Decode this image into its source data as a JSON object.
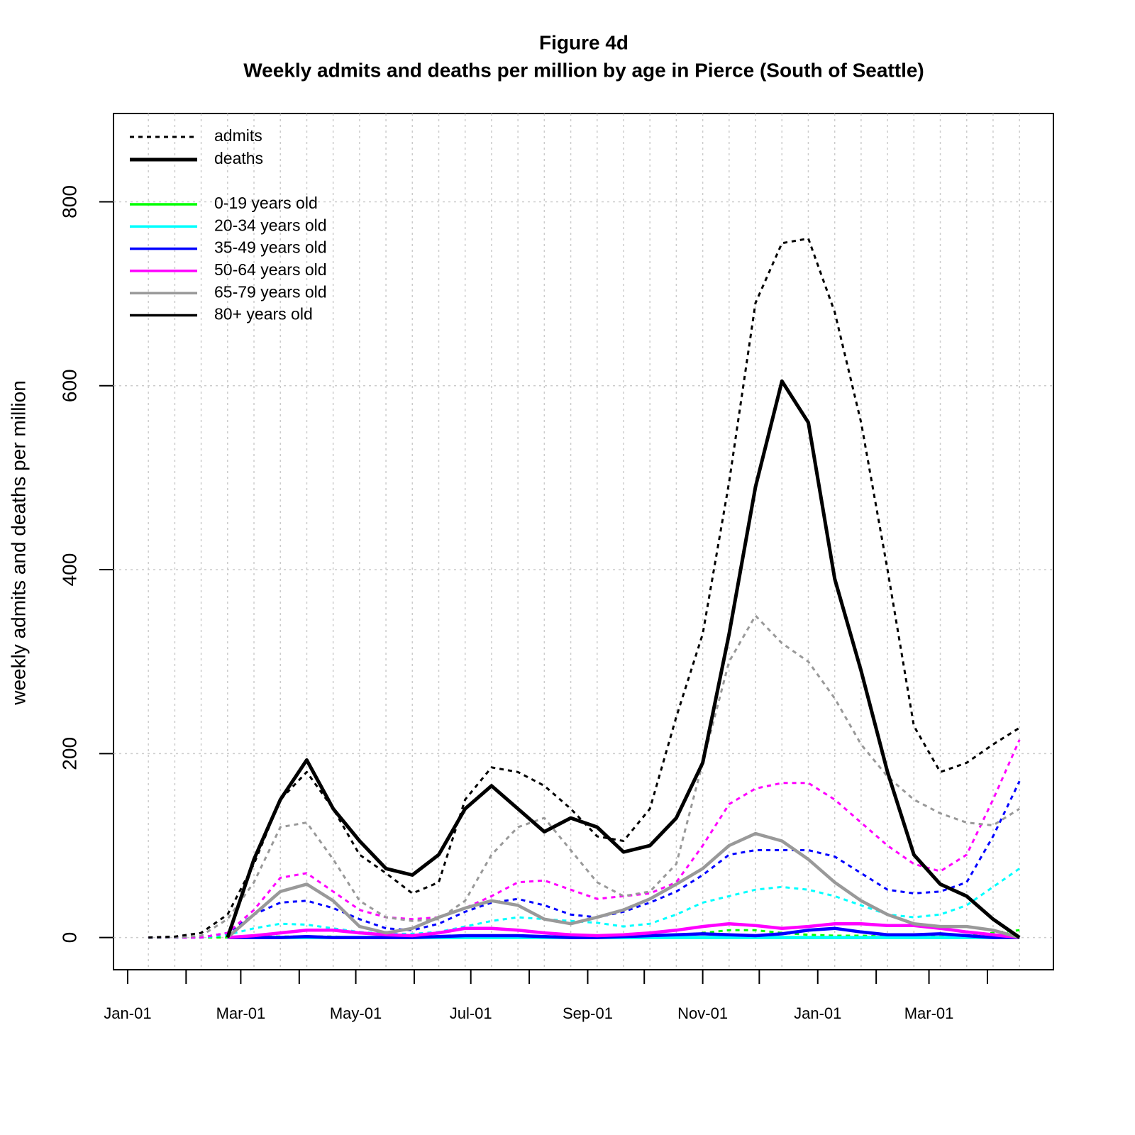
{
  "chart_data": {
    "type": "line",
    "title": "Figure 4d",
    "subtitle": "Weekly admits and deaths per million by age in Pierce (South of Seattle)",
    "y_label": "weekly admits and deaths per million",
    "x": [
      11,
      25,
      39,
      53,
      67,
      81,
      95,
      109,
      123,
      137,
      151,
      165,
      179,
      193,
      207,
      221,
      235,
      249,
      263,
      277,
      291,
      305,
      319,
      333,
      347,
      361,
      375,
      389,
      403,
      417,
      431,
      445,
      459,
      473
    ],
    "xlim": [
      -7.5,
      491
    ],
    "xticks": [
      {
        "value": 0,
        "label": "Jan-01"
      },
      {
        "value": 31,
        "label": null
      },
      {
        "value": 60,
        "label": "Mar-01"
      },
      {
        "value": 91,
        "label": null
      },
      {
        "value": 121,
        "label": "May-01"
      },
      {
        "value": 152,
        "label": null
      },
      {
        "value": 182,
        "label": "Jul-01"
      },
      {
        "value": 213,
        "label": null
      },
      {
        "value": 244,
        "label": "Sep-01"
      },
      {
        "value": 274,
        "label": null
      },
      {
        "value": 305,
        "label": "Nov-01"
      },
      {
        "value": 335,
        "label": null
      },
      {
        "value": 366,
        "label": "Jan-01"
      },
      {
        "value": 397,
        "label": null
      },
      {
        "value": 425,
        "label": "Mar-01"
      },
      {
        "value": 456,
        "label": null
      }
    ],
    "ylim": [
      -35,
      896
    ],
    "yticks": [
      0,
      200,
      400,
      600,
      800
    ],
    "grid": true,
    "line_styles": [
      {
        "name": "admits",
        "dash": "dotted"
      },
      {
        "name": "deaths",
        "dash": "solid"
      }
    ],
    "series": [
      {
        "name": "0-19 years old",
        "color": "#00ff00",
        "admits": [
          0,
          0,
          0,
          0,
          1,
          1,
          1,
          1,
          0,
          0,
          0,
          0,
          1,
          2,
          2,
          1,
          1,
          0,
          0,
          1,
          2,
          5,
          8,
          8,
          5,
          3,
          2,
          2,
          1,
          1,
          1,
          2,
          5,
          8
        ],
        "deaths": [
          null,
          null,
          null,
          0,
          0,
          0,
          0,
          0,
          0,
          0,
          0,
          0,
          0,
          0,
          0,
          0,
          0,
          0,
          0,
          0,
          0,
          0,
          0,
          0,
          0,
          0,
          0,
          0,
          0,
          0,
          0,
          0,
          0,
          0
        ]
      },
      {
        "name": "20-34 years old",
        "color": "#00ffff",
        "admits": [
          0,
          0,
          0,
          3,
          10,
          15,
          14,
          10,
          6,
          4,
          4,
          6,
          12,
          18,
          22,
          20,
          18,
          16,
          12,
          15,
          25,
          38,
          45,
          52,
          55,
          52,
          45,
          35,
          25,
          22,
          25,
          35,
          55,
          75
        ],
        "deaths": [
          null,
          null,
          null,
          0,
          0,
          0,
          0,
          0,
          0,
          0,
          0,
          0,
          0,
          0,
          0,
          0,
          0,
          0,
          0,
          0,
          0,
          0,
          0,
          0,
          0,
          0,
          0,
          0,
          0,
          0,
          0,
          0,
          0,
          0
        ]
      },
      {
        "name": "35-49 years old",
        "color": "#0000ff",
        "admits": [
          0,
          0,
          0,
          5,
          25,
          38,
          40,
          32,
          20,
          10,
          8,
          15,
          28,
          38,
          42,
          35,
          25,
          22,
          28,
          38,
          50,
          68,
          90,
          95,
          95,
          95,
          88,
          70,
          52,
          48,
          50,
          60,
          110,
          170
        ],
        "deaths": [
          null,
          null,
          null,
          0,
          0,
          0,
          1,
          0,
          0,
          0,
          0,
          1,
          2,
          2,
          2,
          1,
          0,
          0,
          1,
          2,
          3,
          4,
          3,
          2,
          4,
          8,
          10,
          6,
          3,
          3,
          4,
          2,
          0,
          0
        ]
      },
      {
        "name": "50-64 years old",
        "color": "#ff00ff",
        "admits": [
          0,
          0,
          0,
          5,
          30,
          65,
          70,
          50,
          30,
          22,
          20,
          22,
          32,
          45,
          60,
          62,
          52,
          42,
          45,
          48,
          60,
          100,
          145,
          162,
          168,
          168,
          150,
          125,
          100,
          80,
          72,
          90,
          150,
          215
        ],
        "deaths": [
          null,
          null,
          null,
          0,
          2,
          5,
          8,
          8,
          5,
          3,
          2,
          5,
          10,
          10,
          8,
          5,
          3,
          2,
          3,
          5,
          8,
          12,
          15,
          13,
          10,
          12,
          15,
          15,
          13,
          13,
          10,
          6,
          3,
          0
        ]
      },
      {
        "name": "65-79 years old",
        "color": "#999999",
        "admits": [
          0,
          0,
          2,
          20,
          60,
          120,
          125,
          85,
          40,
          22,
          18,
          20,
          40,
          90,
          120,
          130,
          95,
          60,
          45,
          50,
          80,
          190,
          300,
          350,
          320,
          300,
          260,
          210,
          175,
          150,
          135,
          125,
          122,
          140
        ],
        "deaths": [
          null,
          null,
          null,
          0,
          25,
          50,
          58,
          40,
          12,
          5,
          10,
          22,
          32,
          40,
          35,
          20,
          15,
          22,
          30,
          42,
          58,
          75,
          100,
          113,
          105,
          85,
          60,
          40,
          25,
          15,
          12,
          12,
          8,
          0
        ]
      },
      {
        "name": "80+ years old",
        "color": "#000000",
        "admits": [
          0,
          1,
          5,
          25,
          80,
          150,
          180,
          140,
          90,
          70,
          48,
          60,
          150,
          185,
          180,
          165,
          140,
          110,
          105,
          140,
          240,
          330,
          495,
          690,
          755,
          760,
          680,
          560,
          400,
          230,
          180,
          190,
          210,
          228
        ],
        "deaths": [
          null,
          null,
          null,
          0,
          85,
          150,
          193,
          140,
          105,
          75,
          68,
          90,
          140,
          165,
          140,
          115,
          130,
          120,
          93,
          100,
          130,
          190,
          330,
          490,
          605,
          560,
          390,
          290,
          180,
          90,
          58,
          45,
          20,
          0
        ]
      }
    ]
  }
}
